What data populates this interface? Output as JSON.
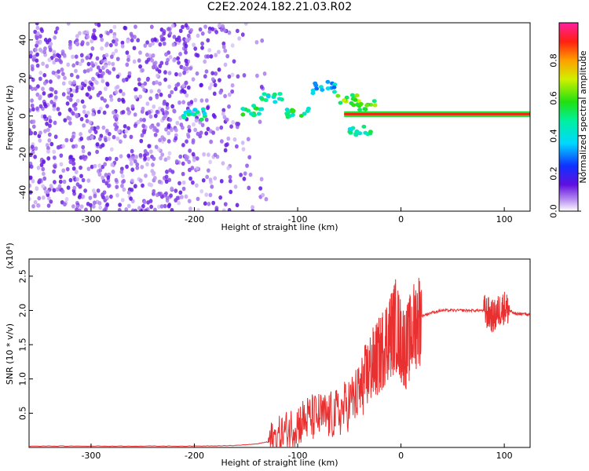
{
  "title": "C2E2.2024.182.21.03.R02",
  "colors": {
    "signal": "#e83030",
    "frame": "#000000"
  },
  "chart_data": [
    {
      "type": "heatmap",
      "xlabel": "Height of straight line (km)",
      "ylabel": "Frequency (Hz)",
      "xlim": [
        -360,
        125
      ],
      "ylim": [
        -50,
        49
      ],
      "xticks": [
        -300,
        -200,
        -100,
        0,
        100
      ],
      "xtick_labels": [
        "-300",
        "-200",
        "-100",
        "0",
        "100"
      ],
      "yticks": [
        -40,
        -20,
        0,
        20,
        40
      ],
      "ytick_labels": [
        "-40",
        "-20",
        "0",
        "20",
        "40"
      ],
      "colorbar": {
        "label": "Normalized spectral amplitude",
        "range": [
          0,
          1
        ],
        "ticks": [
          0,
          0.2,
          0.4,
          0.6,
          0.8
        ],
        "tick_labels": [
          "0.0",
          "0.2",
          "0.4",
          "0.6",
          "0.8"
        ]
      },
      "features": {
        "noise_region": {
          "x": [
            -360,
            -130
          ],
          "y": [
            -50,
            49
          ]
        },
        "carrier_line": {
          "x": [
            -55,
            125
          ],
          "frequency": 1,
          "amplitude": 0.9
        },
        "fragments": [
          {
            "x": -200,
            "y": 1,
            "amp": 0.45
          },
          {
            "x": -145,
            "y": 3,
            "amp": 0.5
          },
          {
            "x": -125,
            "y": 9,
            "amp": 0.45
          },
          {
            "x": -100,
            "y": 2,
            "amp": 0.5
          },
          {
            "x": -75,
            "y": 15,
            "amp": 0.35
          },
          {
            "x": -50,
            "y": 8,
            "amp": 0.6
          },
          {
            "x": -40,
            "y": -8,
            "amp": 0.45
          },
          {
            "x": -35,
            "y": 6,
            "amp": 0.6
          }
        ]
      }
    },
    {
      "type": "line",
      "xlabel": "Height of straight line (km)",
      "ylabel": "SNR (10 * v/v)",
      "y_multiplier": "(x10⁴)",
      "xlim": [
        -360,
        125
      ],
      "ylim": [
        0,
        2.75
      ],
      "xticks": [
        -300,
        -200,
        -100,
        0,
        100
      ],
      "xtick_labels": [
        "-300",
        "-200",
        "-100",
        "0",
        "100"
      ],
      "yticks": [
        0.5,
        1.0,
        1.5,
        2.0,
        2.5
      ],
      "ytick_labels": [
        "0.5",
        "1.0",
        "1.5",
        "2.0",
        "2.5"
      ],
      "series": [
        {
          "x": [
            -360,
            -300,
            -250,
            -200,
            -160,
            -140,
            -130,
            -120,
            -110,
            -100,
            -90,
            -80,
            -70,
            -60,
            -50,
            -40,
            -35,
            -30,
            -25,
            -20,
            -15,
            -10,
            -5,
            0,
            5,
            10,
            15,
            20,
            30,
            40,
            50,
            60,
            70,
            80,
            85,
            90,
            95,
            100,
            105,
            110,
            120,
            125
          ],
          "values": [
            0.02,
            0.02,
            0.02,
            0.02,
            0.03,
            0.05,
            0.08,
            0.15,
            0.25,
            0.35,
            0.42,
            0.45,
            0.45,
            0.5,
            0.65,
            0.8,
            1.0,
            1.15,
            1.25,
            1.35,
            1.55,
            1.65,
            1.8,
            1.55,
            1.45,
            1.65,
            1.85,
            1.92,
            1.97,
            2.0,
            2.0,
            2.0,
            2.0,
            2.0,
            1.95,
            1.9,
            2.0,
            2.05,
            2.0,
            1.95,
            1.95,
            1.93
          ]
        }
      ]
    }
  ]
}
